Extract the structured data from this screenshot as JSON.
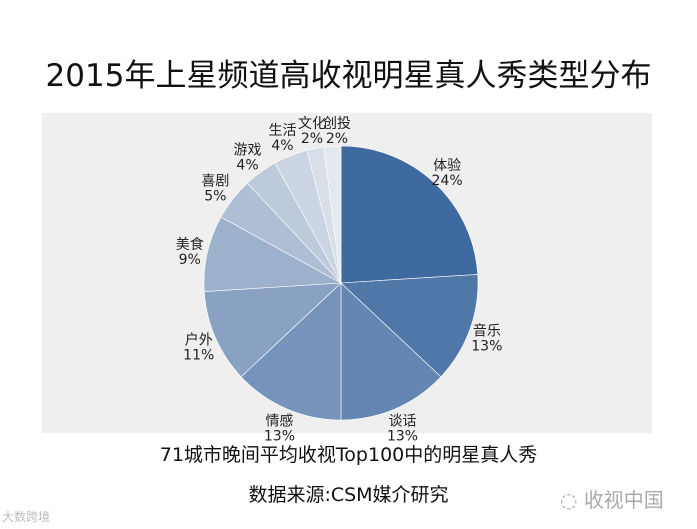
{
  "chart_data": {
    "type": "pie",
    "title": "2015年上星频道高收视明星真人秀类型分布",
    "start": "top",
    "direction": "clockwise",
    "slices": [
      {
        "label": "体验",
        "value": 24,
        "text": "24%",
        "color": "#3e6a9f"
      },
      {
        "label": "音乐",
        "value": 13,
        "text": "13%",
        "color": "#4f78a9"
      },
      {
        "label": "谈话",
        "value": 13,
        "text": "13%",
        "color": "#6386b2"
      },
      {
        "label": "情感",
        "value": 13,
        "text": "13%",
        "color": "#7593bb"
      },
      {
        "label": "户外",
        "value": 11,
        "text": "11%",
        "color": "#89a2c4"
      },
      {
        "label": "美食",
        "value": 9,
        "text": "9%",
        "color": "#9cb1cc"
      },
      {
        "label": "喜剧",
        "value": 5,
        "text": "5%",
        "color": "#aebfd5"
      },
      {
        "label": "游戏",
        "value": 4,
        "text": "4%",
        "color": "#bdcadc"
      },
      {
        "label": "生活",
        "value": 4,
        "text": "4%",
        "color": "#cad4e2"
      },
      {
        "label": "文化",
        "value": 2,
        "text": "2%",
        "color": "#d8dfe9"
      },
      {
        "label": "创投",
        "value": 2,
        "text": "2%",
        "color": "#e4e9f0"
      }
    ]
  },
  "subtitle": "71城市晚间平均收视Top100中的明星真人秀",
  "source": "数据来源:CSM媒介研究",
  "watermark": "收视中国",
  "watermark2": "大数跨境"
}
